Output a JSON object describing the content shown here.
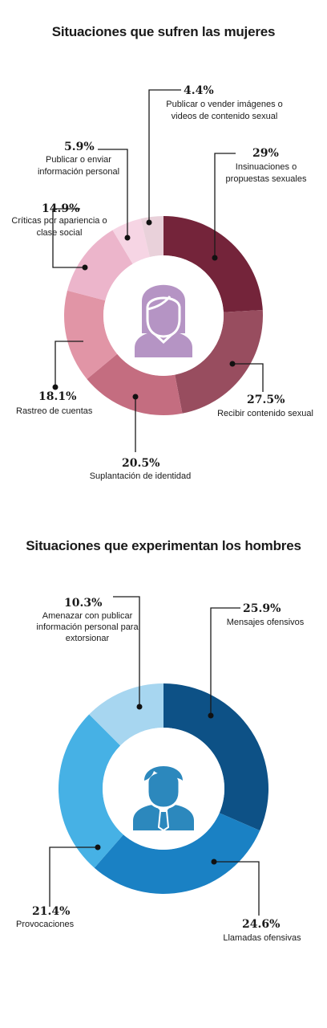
{
  "chart_data": [
    {
      "type": "pie",
      "title": "Situaciones que sufren las mujeres",
      "series": [
        {
          "label": "Insinuaciones o propuestas sexuales",
          "pct_label": "29%",
          "value": 29,
          "color": "#74243a"
        },
        {
          "label": "Recibir contenido sexual",
          "pct_label": "27.5%",
          "value": 27.5,
          "color": "#984d5f"
        },
        {
          "label": "Suplantación de identidad",
          "pct_label": "20.5%",
          "value": 20.5,
          "color": "#c46d80"
        },
        {
          "label": "Rastreo de cuentas",
          "pct_label": "18.1%",
          "value": 18.1,
          "color": "#e195a6"
        },
        {
          "label": "Críticas por apariencia o clase social",
          "pct_label": "14.9%",
          "value": 14.9,
          "color": "#ecb5cb"
        },
        {
          "label": "Publicar o enviar información personal",
          "pct_label": "5.9%",
          "value": 5.9,
          "color": "#f6d5e4"
        },
        {
          "label": "Publicar o vender imágenes o videos de contenido sexual",
          "pct_label": "4.4%",
          "value": 4.4,
          "color": "#e9d1da"
        }
      ]
    },
    {
      "type": "pie",
      "title": "Situaciones que experimentan los hombres",
      "series": [
        {
          "label": "Mensajes ofensivos",
          "pct_label": "25.9%",
          "value": 25.9,
          "color": "#0d5186"
        },
        {
          "label": "Llamadas ofensivas",
          "pct_label": "24.6%",
          "value": 24.6,
          "color": "#1a81c4"
        },
        {
          "label": "Provocaciones",
          "pct_label": "21.4%",
          "value": 21.4,
          "color": "#46b1e5"
        },
        {
          "label": "Amenazar con publicar información personal para extorsionar",
          "pct_label": "10.3%",
          "value": 10.3,
          "color": "#a7d6f0"
        }
      ]
    }
  ],
  "icons": {
    "women": "woman-avatar-icon",
    "men": "man-avatar-icon"
  },
  "colors": {
    "woman_icon": "#b594c4",
    "man_icon": "#2c88bd"
  }
}
